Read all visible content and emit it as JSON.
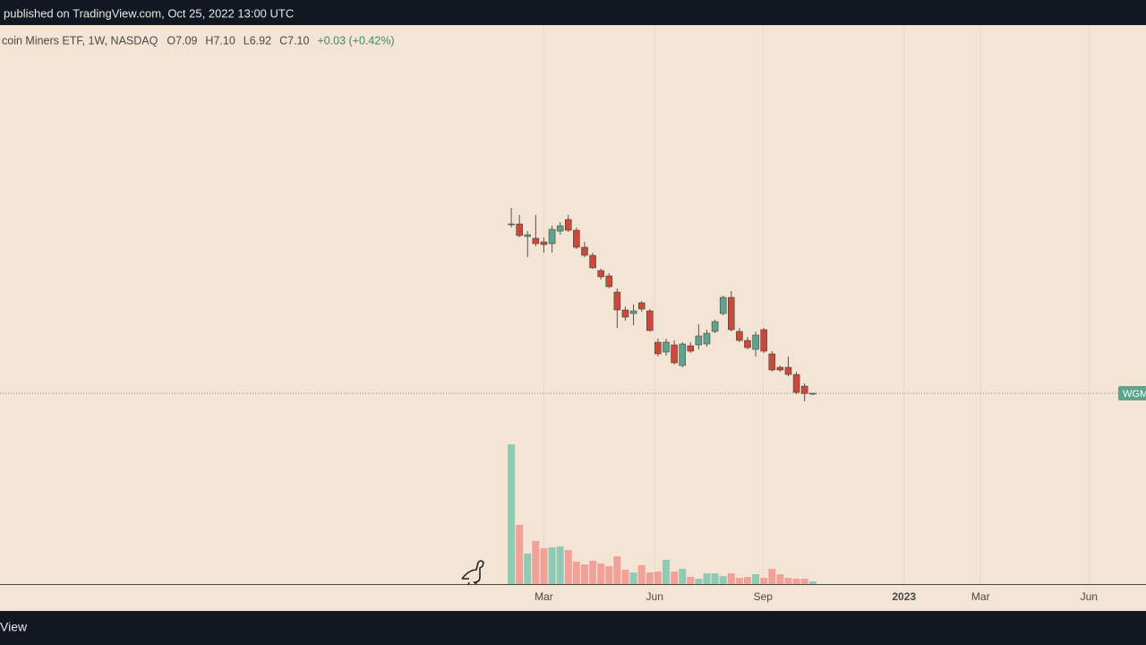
{
  "chart_data": {
    "type": "candlestick",
    "published": "published on TradingView.com, Oct 25, 2022 13:00 UTC",
    "title": "coin Miners ETF, 1W, NASDAQ",
    "header_values": [
      "O7.09",
      "H7.10",
      "L6.92",
      "C7.10",
      "+0.03 (+0.42%)"
    ],
    "footer": "View",
    "price_tag": "WGM",
    "up_color": "#5fa38a",
    "down_color": "#c94a3c",
    "volume_up_color": "#8fcbb4",
    "volume_down_color": "#f2a199",
    "categories": [
      null,
      null,
      null,
      null,
      null,
      null,
      null,
      null,
      null,
      null,
      null,
      null,
      null,
      null,
      null,
      null,
      null,
      null,
      null,
      null,
      null,
      null,
      null,
      null,
      null,
      null,
      null,
      null,
      null,
      null,
      null,
      null,
      null,
      null,
      null,
      null,
      null,
      null
    ],
    "open": [
      24.02,
      24.11,
      22.85,
      22.67,
      22.31,
      22.13,
      23.39,
      24.56,
      23.48,
      21.77,
      20.96,
      19.43,
      18.89,
      17.27,
      15.47,
      15.11,
      16.19,
      15.38,
      12.23,
      11.24,
      11.96,
      9.89,
      11.87,
      11.96,
      12.05,
      13.31,
      15.11,
      16.73,
      13.31,
      12.41,
      11.51,
      13.49,
      11.06,
      9.71,
      9.71,
      8.99,
      7.82,
      7.09
    ],
    "high": [
      25.73,
      25.01,
      23.39,
      25.01,
      22.76,
      23.93,
      24.29,
      25.01,
      23.75,
      22.31,
      21.23,
      19.61,
      19.16,
      17.63,
      15.83,
      16.01,
      16.37,
      15.56,
      12.59,
      12.59,
      12.41,
      12.23,
      12.23,
      14.03,
      13.49,
      14.48,
      16.91,
      17.36,
      13.67,
      12.77,
      13.31,
      13.67,
      11.33,
      9.89,
      10.79,
      9.26,
      8.09,
      7.1
    ],
    "low": [
      23.75,
      22.76,
      20.78,
      21.86,
      21.23,
      21.23,
      23.03,
      23.3,
      21.59,
      20.78,
      19.61,
      18.53,
      17.63,
      13.67,
      14.39,
      13.94,
      15.29,
      13.31,
      10.79,
      10.88,
      9.98,
      9.71,
      11.15,
      11.51,
      11.78,
      13.13,
      14.93,
      13.31,
      12.23,
      11.51,
      10.79,
      11.15,
      9.26,
      9.26,
      8.81,
      7.01,
      6.29,
      6.92
    ],
    "close": [
      24.11,
      22.94,
      23.03,
      22.13,
      22.04,
      23.57,
      23.93,
      23.48,
      21.77,
      20.96,
      19.7,
      18.8,
      17.81,
      15.47,
      14.75,
      15.38,
      15.56,
      13.4,
      11.06,
      12.23,
      10.16,
      12.05,
      11.33,
      12.86,
      13.13,
      14.3,
      16.73,
      13.49,
      12.41,
      11.69,
      12.95,
      11.33,
      9.44,
      9.44,
      8.99,
      7.19,
      7.07,
      7.1
    ],
    "volume": [
      156,
      66,
      34,
      48,
      40,
      41,
      42,
      38,
      25,
      22,
      26,
      23,
      20,
      31,
      16,
      13,
      21,
      13,
      14,
      27,
      14,
      17,
      8,
      6,
      12,
      12,
      9,
      12,
      7,
      8,
      11,
      7,
      17,
      11,
      7,
      6,
      6,
      3
    ],
    "ylim": [
      -12.34,
      43.91
    ],
    "volume_ylim": [
      0,
      200
    ],
    "xlim": [
      -62.75,
      77.9
    ],
    "xticks": [
      {
        "value": 4,
        "label": "Mar"
      },
      {
        "value": 17.6,
        "label": "Jun"
      },
      {
        "value": 30.9,
        "label": "Sep"
      },
      {
        "value": 48.2,
        "label": "2023"
      },
      {
        "value": 57.6,
        "label": "Mar"
      },
      {
        "value": 70.9,
        "label": "Jun"
      }
    ],
    "grid": true
  }
}
